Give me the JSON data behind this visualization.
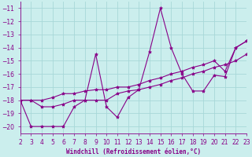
{
  "xlabel": "Windchill (Refroidissement éolien,°C)",
  "bg_color": "#cbeeed",
  "grid_color": "#a8d8d8",
  "line_color": "#880088",
  "xmin": 2,
  "xmax": 23,
  "ymin": -20.5,
  "ymax": -10.5,
  "yticks": [
    -20,
    -19,
    -18,
    -17,
    -16,
    -15,
    -14,
    -13,
    -12,
    -11
  ],
  "xticks": [
    2,
    3,
    4,
    5,
    6,
    7,
    8,
    9,
    10,
    11,
    12,
    13,
    14,
    15,
    16,
    17,
    18,
    19,
    20,
    21,
    22,
    23
  ],
  "series": [
    {
      "x": [
        2,
        3,
        4,
        5,
        6,
        7,
        8,
        9,
        10,
        11,
        12,
        13,
        14,
        15,
        16,
        17,
        18,
        19,
        20,
        21,
        22,
        23
      ],
      "y": [
        -18.0,
        -20.0,
        -20.0,
        -20.0,
        -20.0,
        -18.5,
        -18.0,
        -14.5,
        -18.5,
        -19.3,
        -17.8,
        -17.2,
        -14.3,
        -11.0,
        -14.0,
        -16.0,
        -17.3,
        -17.3,
        -16.1,
        -16.2,
        -14.0,
        -13.5
      ]
    },
    {
      "x": [
        2,
        3,
        4,
        5,
        6,
        7,
        8,
        9,
        10,
        11,
        12,
        13,
        14,
        15,
        16,
        17,
        18,
        19,
        20,
        21,
        22,
        23
      ],
      "y": [
        -18.0,
        -18.0,
        -18.0,
        -17.8,
        -17.5,
        -17.5,
        -17.3,
        -17.2,
        -17.2,
        -17.0,
        -17.0,
        -16.8,
        -16.5,
        -16.3,
        -16.0,
        -15.8,
        -15.5,
        -15.3,
        -15.0,
        -15.8,
        -14.0,
        -13.5
      ]
    },
    {
      "x": [
        2,
        3,
        4,
        5,
        6,
        7,
        8,
        9,
        10,
        11,
        12,
        13,
        14,
        15,
        16,
        17,
        18,
        19,
        20,
        21,
        22,
        23
      ],
      "y": [
        -18.0,
        -18.0,
        -18.5,
        -18.5,
        -18.3,
        -18.0,
        -18.0,
        -18.0,
        -18.0,
        -17.5,
        -17.3,
        -17.2,
        -17.0,
        -16.8,
        -16.5,
        -16.3,
        -16.0,
        -15.8,
        -15.5,
        -15.3,
        -15.0,
        -14.5
      ]
    }
  ]
}
